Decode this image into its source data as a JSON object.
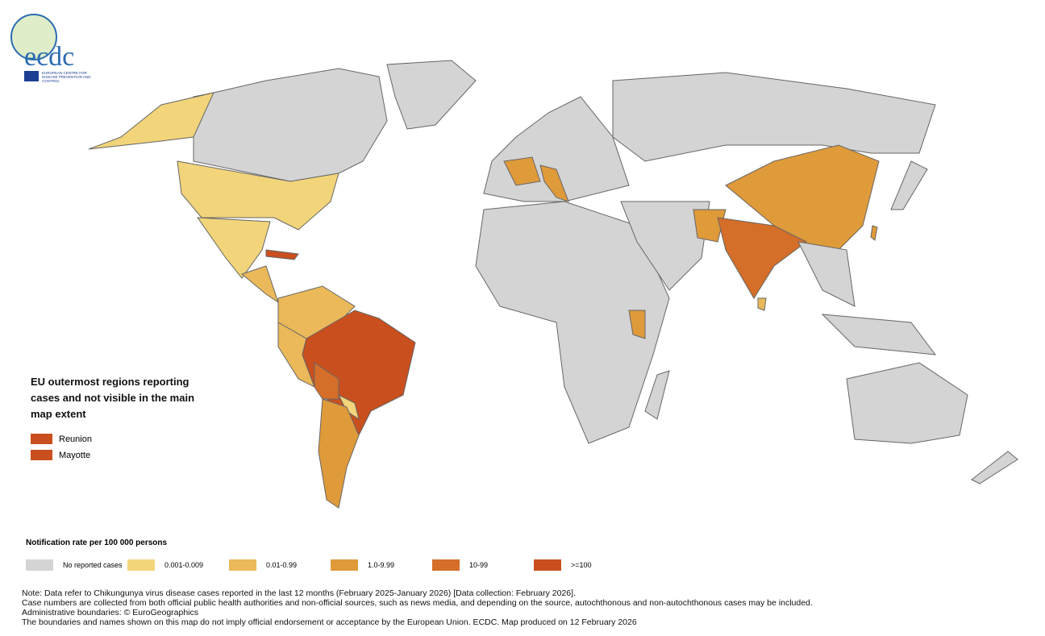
{
  "logo": {
    "name": "ecdc",
    "org": "EUROPEAN CENTRE FOR DISEASE PREVENTION AND CONTROL"
  },
  "inset": {
    "title": "EU outermost regions reporting cases and not visible in the main map extent",
    "regions": [
      {
        "name": "Reunion",
        "color": "#c94f1e"
      },
      {
        "name": "Mayotte",
        "color": "#c94f1e"
      }
    ]
  },
  "legend": {
    "title": "Notification rate per 100 000 persons",
    "items": [
      {
        "label": "No reported cases",
        "color": "#d4d4d4"
      },
      {
        "label": "0.001-0.009",
        "color": "#f2d57a"
      },
      {
        "label": "0.01-0.99",
        "color": "#ebb95a"
      },
      {
        "label": "1.0-9.99",
        "color": "#df9a3a"
      },
      {
        "label": "10-99",
        "color": "#d56e28"
      },
      {
        "label": ">=100",
        "color": "#c94f1e"
      }
    ]
  },
  "notes": [
    "Note: Data refer to Chikungunya virus disease cases reported in the last 12 months (February 2025-January 2026) [Data collection: February 2026].",
    "Case numbers are collected from both official public health authorities and non-official sources, such as news media, and depending on the source, autochthonous and non-autochthonous cases may be included.",
    "Administrative boundaries: © EuroGeographics",
    "The boundaries and names shown on this map do not imply official endorsement or acceptance by the European Union. ECDC. Map produced on 12 February 2026"
  ]
}
